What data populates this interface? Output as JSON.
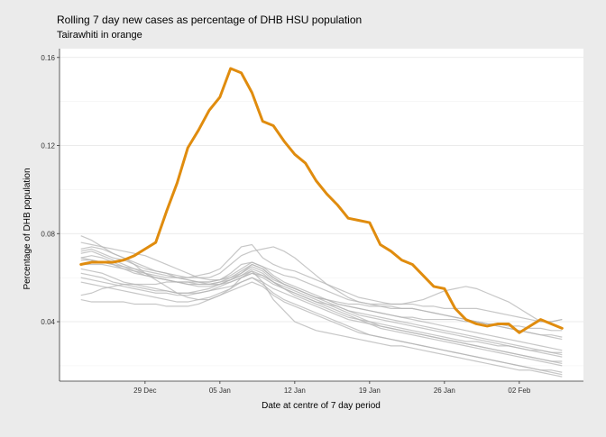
{
  "chart_data": {
    "type": "line",
    "title": "Rolling 7 day new cases as percentage of DHB HSU population",
    "subtitle": "Tairawhiti in orange",
    "xlabel": "Date at centre of 7 day period",
    "ylabel": "Percentage of DHB population",
    "x_start": "2021-12-23",
    "x_end": "2022-02-06",
    "xlim": [
      "2021-12-21",
      "2022-02-08"
    ],
    "ylim": [
      0.013,
      0.164
    ],
    "x_ticks": [
      {
        "date": "2021-12-29",
        "label": "29 Dec"
      },
      {
        "date": "2022-01-05",
        "label": "05 Jan"
      },
      {
        "date": "2022-01-12",
        "label": "12 Jan"
      },
      {
        "date": "2022-01-19",
        "label": "19 Jan"
      },
      {
        "date": "2022-01-26",
        "label": "26 Jan"
      },
      {
        "date": "2022-02-02",
        "label": "02 Feb"
      }
    ],
    "y_ticks": [
      {
        "value": 0.04,
        "label": "0.04"
      },
      {
        "value": 0.08,
        "label": "0.08"
      },
      {
        "value": 0.12,
        "label": "0.12"
      },
      {
        "value": 0.16,
        "label": "0.16"
      }
    ],
    "highlight_color": "#e08c0e",
    "other_color": "#b4b4b4",
    "highlight_series": {
      "values": [
        0.066,
        0.067,
        0.067,
        0.067,
        0.068,
        0.07,
        0.073,
        0.076,
        0.09,
        0.103,
        0.119,
        0.127,
        0.136,
        0.142,
        0.155,
        0.153,
        0.144,
        0.131,
        0.129,
        0.122,
        0.116,
        0.112,
        0.104,
        0.098,
        0.093,
        0.087,
        0.086,
        0.085,
        0.075,
        0.072,
        0.068,
        0.066,
        0.061,
        0.056,
        0.055,
        0.046,
        0.041,
        0.039,
        0.038,
        0.039,
        0.039,
        0.035,
        0.038,
        0.041,
        0.039,
        0.037
      ]
    },
    "series": [
      {
        "values": [
          0.079,
          0.077,
          0.074,
          0.071,
          0.069,
          0.067,
          0.065,
          0.063,
          0.062,
          0.061,
          0.06,
          0.06,
          0.059,
          0.059,
          0.06,
          0.062,
          0.066,
          0.064,
          0.06,
          0.057,
          0.055,
          0.053,
          0.051,
          0.05,
          0.049,
          0.048,
          0.048,
          0.047,
          0.047,
          0.047,
          0.046,
          0.046,
          0.045,
          0.044,
          0.043,
          0.042,
          0.041,
          0.04,
          0.039,
          0.038,
          0.037,
          0.036,
          0.035,
          0.034,
          0.033,
          0.032
        ]
      },
      {
        "values": [
          0.072,
          0.073,
          0.071,
          0.069,
          0.068,
          0.066,
          0.064,
          0.063,
          0.062,
          0.06,
          0.059,
          0.058,
          0.058,
          0.059,
          0.061,
          0.064,
          0.067,
          0.065,
          0.061,
          0.058,
          0.056,
          0.054,
          0.052,
          0.05,
          0.048,
          0.047,
          0.046,
          0.045,
          0.044,
          0.043,
          0.042,
          0.042,
          0.041,
          0.041,
          0.041,
          0.041,
          0.04,
          0.04,
          0.039,
          0.039,
          0.038,
          0.038,
          0.037,
          0.037,
          0.036,
          0.036
        ]
      },
      {
        "values": [
          0.071,
          0.072,
          0.07,
          0.068,
          0.066,
          0.064,
          0.062,
          0.06,
          0.059,
          0.058,
          0.057,
          0.057,
          0.057,
          0.058,
          0.06,
          0.063,
          0.066,
          0.064,
          0.06,
          0.057,
          0.055,
          0.053,
          0.051,
          0.049,
          0.047,
          0.045,
          0.043,
          0.042,
          0.041,
          0.04,
          0.039,
          0.038,
          0.037,
          0.036,
          0.035,
          0.034,
          0.033,
          0.032,
          0.031,
          0.03,
          0.029,
          0.028,
          0.027,
          0.026,
          0.025,
          0.024
        ]
      },
      {
        "values": [
          0.069,
          0.07,
          0.069,
          0.067,
          0.065,
          0.063,
          0.061,
          0.06,
          0.059,
          0.058,
          0.057,
          0.056,
          0.056,
          0.057,
          0.059,
          0.062,
          0.065,
          0.063,
          0.059,
          0.057,
          0.055,
          0.053,
          0.051,
          0.05,
          0.048,
          0.047,
          0.046,
          0.045,
          0.044,
          0.043,
          0.042,
          0.041,
          0.04,
          0.039,
          0.038,
          0.037,
          0.036,
          0.035,
          0.034,
          0.033,
          0.032,
          0.031,
          0.03,
          0.029,
          0.028,
          0.027
        ]
      },
      {
        "values": [
          0.068,
          0.068,
          0.067,
          0.066,
          0.064,
          0.062,
          0.061,
          0.06,
          0.059,
          0.058,
          0.058,
          0.057,
          0.057,
          0.058,
          0.059,
          0.061,
          0.064,
          0.062,
          0.058,
          0.055,
          0.053,
          0.051,
          0.049,
          0.048,
          0.047,
          0.045,
          0.044,
          0.043,
          0.042,
          0.041,
          0.04,
          0.039,
          0.038,
          0.037,
          0.036,
          0.035,
          0.034,
          0.033,
          0.032,
          0.031,
          0.03,
          0.029,
          0.028,
          0.027,
          0.026,
          0.026
        ]
      },
      {
        "values": [
          0.062,
          0.061,
          0.06,
          0.058,
          0.057,
          0.056,
          0.055,
          0.054,
          0.054,
          0.053,
          0.053,
          0.054,
          0.055,
          0.057,
          0.059,
          0.061,
          0.063,
          0.061,
          0.058,
          0.056,
          0.054,
          0.052,
          0.05,
          0.048,
          0.046,
          0.044,
          0.042,
          0.04,
          0.038,
          0.037,
          0.036,
          0.035,
          0.034,
          0.033,
          0.032,
          0.031,
          0.03,
          0.029,
          0.028,
          0.027,
          0.026,
          0.025,
          0.024,
          0.023,
          0.022,
          0.021
        ]
      },
      {
        "values": [
          0.06,
          0.059,
          0.058,
          0.057,
          0.056,
          0.055,
          0.054,
          0.053,
          0.053,
          0.052,
          0.052,
          0.053,
          0.054,
          0.056,
          0.058,
          0.06,
          0.062,
          0.06,
          0.057,
          0.055,
          0.053,
          0.051,
          0.049,
          0.047,
          0.045,
          0.043,
          0.041,
          0.039,
          0.037,
          0.036,
          0.035,
          0.034,
          0.033,
          0.032,
          0.031,
          0.03,
          0.029,
          0.028,
          0.027,
          0.026,
          0.025,
          0.024,
          0.023,
          0.022,
          0.021,
          0.02
        ]
      },
      {
        "values": [
          0.058,
          0.057,
          0.056,
          0.055,
          0.054,
          0.053,
          0.052,
          0.051,
          0.05,
          0.049,
          0.049,
          0.05,
          0.051,
          0.053,
          0.055,
          0.058,
          0.06,
          0.058,
          0.055,
          0.053,
          0.051,
          0.049,
          0.047,
          0.045,
          0.043,
          0.041,
          0.04,
          0.039,
          0.038,
          0.037,
          0.036,
          0.035,
          0.034,
          0.033,
          0.032,
          0.031,
          0.03,
          0.029,
          0.028,
          0.027,
          0.026,
          0.025,
          0.024,
          0.023,
          0.022,
          0.022
        ]
      },
      {
        "values": [
          0.064,
          0.063,
          0.062,
          0.06,
          0.058,
          0.057,
          0.056,
          0.055,
          0.054,
          0.053,
          0.053,
          0.053,
          0.054,
          0.055,
          0.056,
          0.058,
          0.06,
          0.057,
          0.053,
          0.05,
          0.048,
          0.046,
          0.044,
          0.042,
          0.04,
          0.038,
          0.036,
          0.034,
          0.033,
          0.032,
          0.031,
          0.03,
          0.029,
          0.028,
          0.027,
          0.026,
          0.025,
          0.024,
          0.023,
          0.022,
          0.021,
          0.02,
          0.019,
          0.018,
          0.018,
          0.017
        ]
      },
      {
        "values": [
          0.05,
          0.049,
          0.049,
          0.049,
          0.049,
          0.048,
          0.048,
          0.048,
          0.047,
          0.047,
          0.047,
          0.048,
          0.05,
          0.052,
          0.054,
          0.056,
          0.058,
          0.056,
          0.052,
          0.049,
          0.047,
          0.045,
          0.043,
          0.041,
          0.039,
          0.037,
          0.035,
          0.034,
          0.033,
          0.032,
          0.031,
          0.03,
          0.029,
          0.028,
          0.027,
          0.026,
          0.025,
          0.024,
          0.023,
          0.022,
          0.021,
          0.02,
          0.019,
          0.018,
          0.017,
          0.016
        ]
      },
      {
        "values": [
          0.073,
          0.074,
          0.073,
          0.071,
          0.069,
          0.066,
          0.062,
          0.059,
          0.056,
          0.053,
          0.051,
          0.05,
          0.05,
          0.052,
          0.055,
          0.06,
          0.063,
          0.058,
          0.05,
          0.045,
          0.04,
          0.038,
          0.036,
          0.035,
          0.034,
          0.033,
          0.032,
          0.031,
          0.03,
          0.029,
          0.029,
          0.028,
          0.027,
          0.026,
          0.025,
          0.024,
          0.023,
          0.022,
          0.021,
          0.02,
          0.019,
          0.018,
          0.018,
          0.017,
          0.016,
          0.015
        ]
      },
      {
        "values": [
          0.076,
          0.075,
          0.074,
          0.073,
          0.072,
          0.071,
          0.07,
          0.068,
          0.066,
          0.064,
          0.062,
          0.06,
          0.06,
          0.062,
          0.066,
          0.07,
          0.072,
          0.073,
          0.074,
          0.072,
          0.069,
          0.065,
          0.061,
          0.057,
          0.054,
          0.051,
          0.049,
          0.048,
          0.047,
          0.046,
          0.046,
          0.046,
          0.045,
          0.044,
          0.043,
          0.042,
          0.041,
          0.04,
          0.039,
          0.038,
          0.037,
          0.036,
          0.035,
          0.034,
          0.034,
          0.033
        ]
      },
      {
        "values": [
          0.066,
          0.066,
          0.066,
          0.065,
          0.064,
          0.063,
          0.062,
          0.061,
          0.06,
          0.06,
          0.06,
          0.061,
          0.062,
          0.064,
          0.069,
          0.074,
          0.075,
          0.069,
          0.066,
          0.064,
          0.063,
          0.061,
          0.059,
          0.057,
          0.055,
          0.053,
          0.051,
          0.05,
          0.049,
          0.048,
          0.048,
          0.048,
          0.047,
          0.047,
          0.046,
          0.046,
          0.046,
          0.046,
          0.045,
          0.044,
          0.043,
          0.042,
          0.041,
          0.04,
          0.04,
          0.041
        ]
      },
      {
        "values": [
          0.052,
          0.053,
          0.055,
          0.056,
          0.057,
          0.057,
          0.057,
          0.057,
          0.058,
          0.058,
          0.058,
          0.058,
          0.058,
          0.059,
          0.062,
          0.066,
          0.067,
          0.065,
          0.063,
          0.061,
          0.06,
          0.058,
          0.056,
          0.054,
          0.052,
          0.05,
          0.049,
          0.048,
          0.048,
          0.048,
          0.048,
          0.049,
          0.05,
          0.052,
          0.054,
          0.055,
          0.056,
          0.055,
          0.053,
          0.051,
          0.049,
          0.046,
          0.043,
          0.04,
          0.04,
          0.041
        ]
      },
      {
        "values": [
          0.069,
          0.068,
          0.067,
          0.066,
          0.065,
          0.064,
          0.063,
          0.062,
          0.061,
          0.06,
          0.059,
          0.058,
          0.057,
          0.057,
          0.058,
          0.06,
          0.062,
          0.061,
          0.058,
          0.055,
          0.052,
          0.05,
          0.048,
          0.046,
          0.044,
          0.042,
          0.041,
          0.04,
          0.039,
          0.038,
          0.037,
          0.036,
          0.035,
          0.034,
          0.033,
          0.032,
          0.031,
          0.031,
          0.03,
          0.029,
          0.029,
          0.028,
          0.027,
          0.027,
          0.026,
          0.025
        ]
      }
    ]
  }
}
